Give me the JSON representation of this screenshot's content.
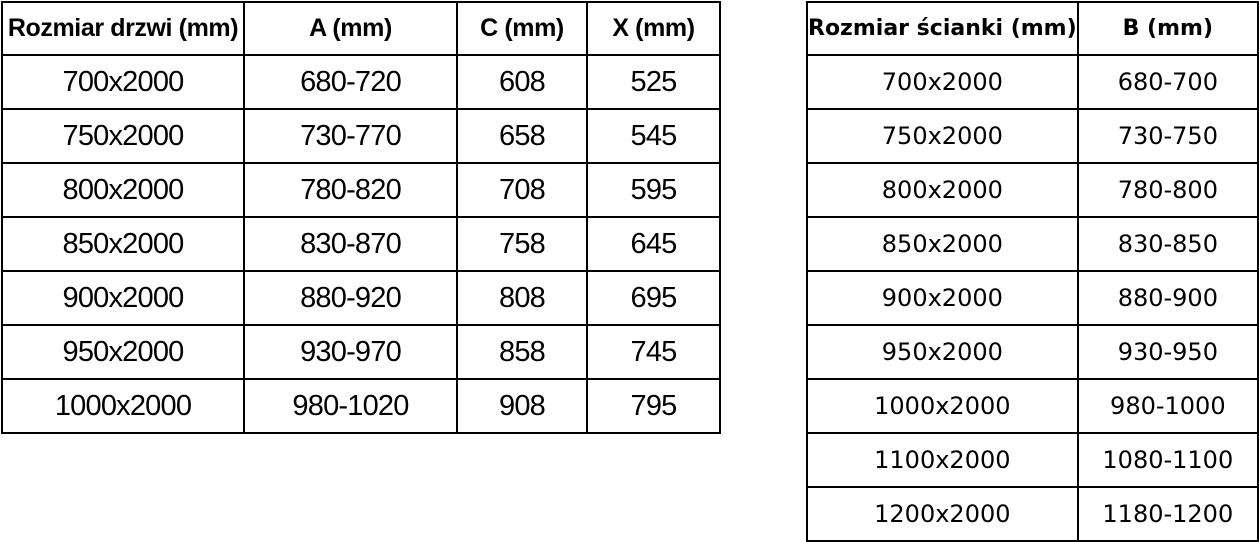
{
  "colors": {
    "background": "#ffffff",
    "border": "#000000",
    "text": "#000000"
  },
  "left_table": {
    "headers": [
      "Rozmiar drzwi (mm)",
      "A (mm)",
      "C (mm)",
      "X (mm)"
    ],
    "rows": [
      [
        "700x2000",
        "680-720",
        "608",
        "525"
      ],
      [
        "750x2000",
        "730-770",
        "658",
        "545"
      ],
      [
        "800x2000",
        "780-820",
        "708",
        "595"
      ],
      [
        "850x2000",
        "830-870",
        "758",
        "645"
      ],
      [
        "900x2000",
        "880-920",
        "808",
        "695"
      ],
      [
        "950x2000",
        "930-970",
        "858",
        "745"
      ],
      [
        "1000x2000",
        "980-1020",
        "908",
        "795"
      ]
    ]
  },
  "right_table": {
    "headers": [
      "Rozmiar ścianki (mm)",
      "B (mm)"
    ],
    "rows": [
      [
        "700x2000",
        "680-700"
      ],
      [
        "750x2000",
        "730-750"
      ],
      [
        "800x2000",
        "780-800"
      ],
      [
        "850x2000",
        "830-850"
      ],
      [
        "900x2000",
        "880-900"
      ],
      [
        "950x2000",
        "930-950"
      ],
      [
        "1000x2000",
        "980-1000"
      ],
      [
        "1100x2000",
        "1080-1100"
      ],
      [
        "1200x2000",
        "1180-1200"
      ]
    ]
  }
}
